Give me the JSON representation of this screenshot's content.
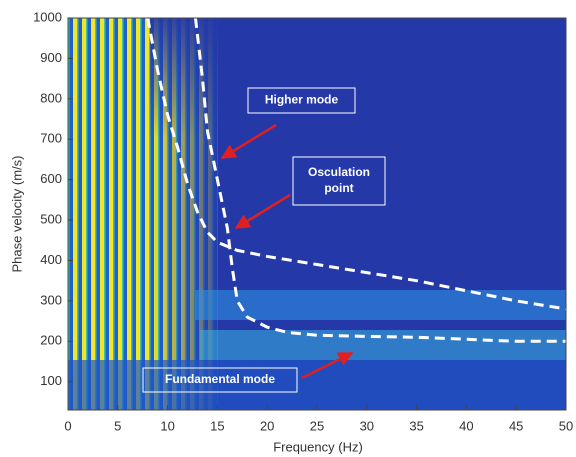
{
  "chart_data": {
    "type": "line",
    "xlabel": "Frequency (Hz)",
    "ylabel": "Phase velocity (m/s)",
    "xlim": [
      0,
      50
    ],
    "xticks": [
      0,
      5,
      10,
      15,
      20,
      25,
      30,
      35,
      40,
      45,
      50
    ],
    "ylim": [
      30,
      1000
    ],
    "yticks": [
      100,
      200,
      300,
      400,
      500,
      600,
      700,
      800,
      900,
      1000
    ],
    "dashed": true,
    "series": [
      {
        "color": "#ffffff",
        "x": [
          8,
          9,
          10,
          11,
          12,
          13,
          14,
          15,
          17,
          20,
          25,
          30,
          35,
          40,
          45,
          50
        ],
        "values": [
          1000,
          870,
          760,
          680,
          590,
          520,
          470,
          445,
          425,
          410,
          390,
          370,
          350,
          325,
          300,
          280
        ]
      },
      {
        "color": "#ffffff",
        "x": [
          12.8,
          13.5,
          14,
          15,
          16,
          16.5,
          17,
          18,
          20,
          22,
          25,
          30,
          35,
          40,
          45,
          50
        ],
        "values": [
          1000,
          850,
          720,
          600,
          480,
          380,
          300,
          260,
          235,
          222,
          215,
          212,
          210,
          205,
          200,
          200
        ]
      }
    ],
    "annotations": [
      {
        "text": [
          "Higher mode"
        ]
      },
      {
        "text": [
          "Osculation",
          "point"
        ]
      },
      {
        "text": [
          "Fundamental mode"
        ]
      }
    ]
  }
}
